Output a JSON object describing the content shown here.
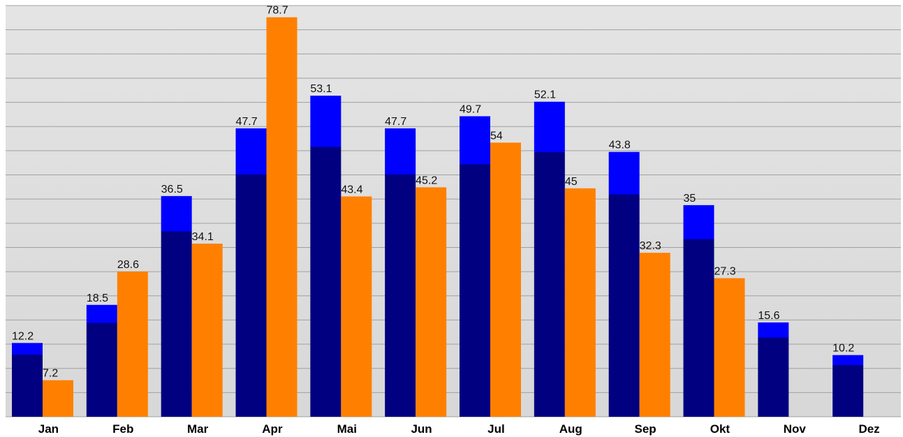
{
  "chart_data": {
    "type": "bar",
    "categories": [
      "Jan",
      "Feb",
      "Mar",
      "Apr",
      "Mai",
      "Jun",
      "Jul",
      "Aug",
      "Sep",
      "Okt",
      "Nov",
      "Dez"
    ],
    "series": [
      {
        "color": "#000080",
        "highlight": "#0000ff",
        "values": [
          12.2,
          18.5,
          36.5,
          47.7,
          53.1,
          47.7,
          49.7,
          52.1,
          43.8,
          35,
          15.6,
          10.2
        ]
      },
      {
        "color": "#ff8000",
        "axis": "y2",
        "values": [
          7.2,
          28.6,
          34.1,
          78.7,
          43.4,
          45.2,
          54,
          45,
          32.3,
          27.3,
          null,
          null
        ]
      }
    ],
    "ylim": [
      0,
      68
    ],
    "yticks": [
      0,
      4,
      8,
      12,
      16,
      20,
      24,
      28,
      32,
      36,
      40,
      44,
      48,
      52,
      56,
      60,
      64,
      68
    ],
    "y2lim": [
      0,
      81
    ],
    "grid": true
  }
}
